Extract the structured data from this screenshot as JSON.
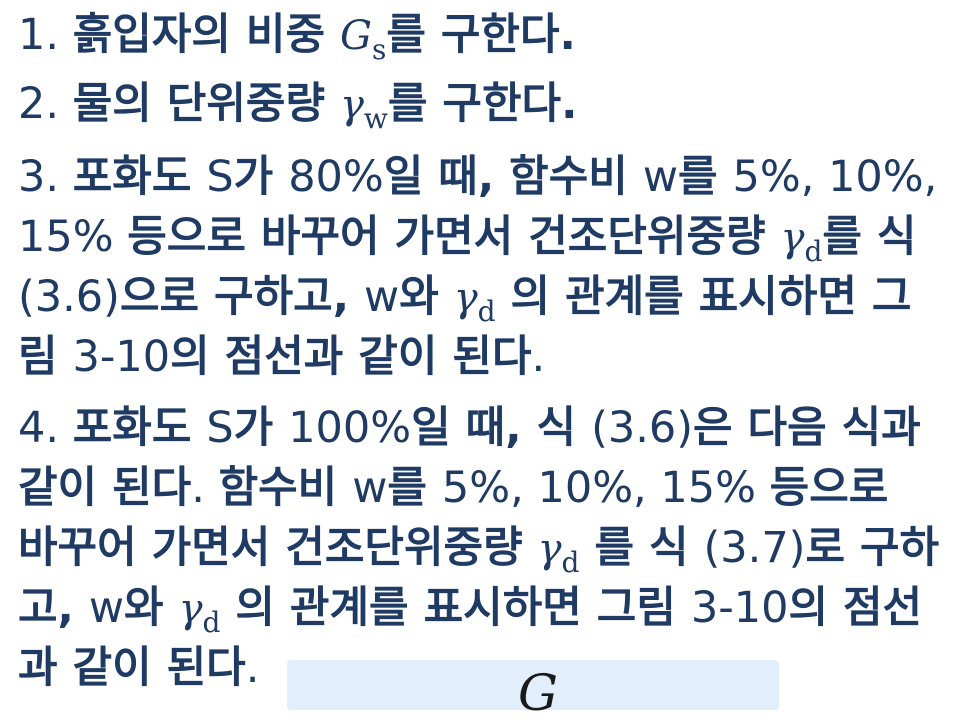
{
  "steps": [
    {
      "lines": [
        [
          {
            "type": "text",
            "value": "1. ",
            "bold": false
          },
          {
            "type": "text",
            "value": "흙입자의 비중 ",
            "bold": true
          },
          {
            "type": "sym",
            "value": "G"
          },
          {
            "type": "sub",
            "value": "s"
          },
          {
            "type": "text",
            "value": "를 구한다.",
            "bold": true
          }
        ]
      ]
    },
    {
      "lines": [
        [
          {
            "type": "text",
            "value": "2. ",
            "bold": false
          },
          {
            "type": "text",
            "value": "물의 단위중량 ",
            "bold": true
          },
          {
            "type": "sym",
            "value": "γ"
          },
          {
            "type": "sub",
            "value": "w"
          },
          {
            "type": "text",
            "value": "를 구한다.",
            "bold": true
          }
        ]
      ]
    },
    {
      "lines": [
        [
          {
            "type": "text",
            "value": "3. ",
            "bold": false
          },
          {
            "type": "text",
            "value": "포화도 ",
            "bold": true
          },
          {
            "type": "text",
            "value": "S",
            "bold": false
          },
          {
            "type": "text",
            "value": "가 ",
            "bold": true
          },
          {
            "type": "text",
            "value": "80%",
            "bold": false
          },
          {
            "type": "text",
            "value": "일 때, 함수비 ",
            "bold": true
          },
          {
            "type": "text",
            "value": "w",
            "bold": false
          },
          {
            "type": "text",
            "value": "를 ",
            "bold": true
          },
          {
            "type": "text",
            "value": "5%, 10%,",
            "bold": false
          }
        ],
        [
          {
            "type": "text",
            "value": "15% ",
            "bold": false
          },
          {
            "type": "text",
            "value": "등으로 바꾸어 가면서 건조단위중량 ",
            "bold": true
          },
          {
            "type": "sym",
            "value": "γ"
          },
          {
            "type": "sub",
            "value": "d"
          },
          {
            "type": "text",
            "value": "를 식",
            "bold": true
          }
        ],
        [
          {
            "type": "text",
            "value": "(3.6)",
            "bold": false
          },
          {
            "type": "text",
            "value": "으로 구하고, ",
            "bold": true
          },
          {
            "type": "text",
            "value": "w",
            "bold": false
          },
          {
            "type": "text",
            "value": "와 ",
            "bold": true
          },
          {
            "type": "sym",
            "value": "γ"
          },
          {
            "type": "sub",
            "value": "d"
          },
          {
            "type": "text",
            "value": " 의 관계를 표시하면 그",
            "bold": true
          }
        ],
        [
          {
            "type": "text",
            "value": "림 ",
            "bold": true
          },
          {
            "type": "text",
            "value": "3-10",
            "bold": false
          },
          {
            "type": "text",
            "value": "의 점선과 같이 된다",
            "bold": true
          },
          {
            "type": "text",
            "value": ".",
            "bold": false
          }
        ]
      ]
    },
    {
      "lines": [
        [
          {
            "type": "text",
            "value": "4. ",
            "bold": false
          },
          {
            "type": "text",
            "value": "포화도 ",
            "bold": true
          },
          {
            "type": "text",
            "value": "S",
            "bold": false
          },
          {
            "type": "text",
            "value": "가 ",
            "bold": true
          },
          {
            "type": "text",
            "value": "100%",
            "bold": false
          },
          {
            "type": "text",
            "value": "일 때, 식 ",
            "bold": true
          },
          {
            "type": "text",
            "value": "(3.6)",
            "bold": false
          },
          {
            "type": "text",
            "value": "은 다음 식과",
            "bold": true
          }
        ],
        [
          {
            "type": "text",
            "value": "같이 된다",
            "bold": true
          },
          {
            "type": "text",
            "value": ". ",
            "bold": false
          },
          {
            "type": "text",
            "value": "함수비 ",
            "bold": true
          },
          {
            "type": "text",
            "value": "w",
            "bold": false
          },
          {
            "type": "text",
            "value": "를 ",
            "bold": true
          },
          {
            "type": "text",
            "value": "5%, 10%, 15% ",
            "bold": false
          },
          {
            "type": "text",
            "value": "등으로",
            "bold": true
          }
        ],
        [
          {
            "type": "text",
            "value": "바꾸어 가면서 건조단위중량 ",
            "bold": true
          },
          {
            "type": "sym",
            "value": "γ"
          },
          {
            "type": "sub",
            "value": "d"
          },
          {
            "type": "text",
            "value": " 를 식 ",
            "bold": true
          },
          {
            "type": "text",
            "value": "(3.7)",
            "bold": false
          },
          {
            "type": "text",
            "value": "로 구하",
            "bold": true
          }
        ],
        [
          {
            "type": "text",
            "value": "고, ",
            "bold": true
          },
          {
            "type": "text",
            "value": "w",
            "bold": false
          },
          {
            "type": "text",
            "value": "와 ",
            "bold": true
          },
          {
            "type": "sym",
            "value": "γ"
          },
          {
            "type": "sub",
            "value": "d"
          },
          {
            "type": "text",
            "value": " 의 관계를 표시하면 그림 ",
            "bold": true
          },
          {
            "type": "text",
            "value": "3-10",
            "bold": false
          },
          {
            "type": "text",
            "value": "의 점선",
            "bold": true
          }
        ],
        [
          {
            "type": "text",
            "value": "과 같이 된다",
            "bold": true
          },
          {
            "type": "text",
            "value": ".",
            "bold": false
          }
        ]
      ]
    }
  ],
  "formula": {
    "symbol": "G"
  },
  "colors": {
    "text": "#1f3a63",
    "formula_bg": "#e2eefb"
  }
}
